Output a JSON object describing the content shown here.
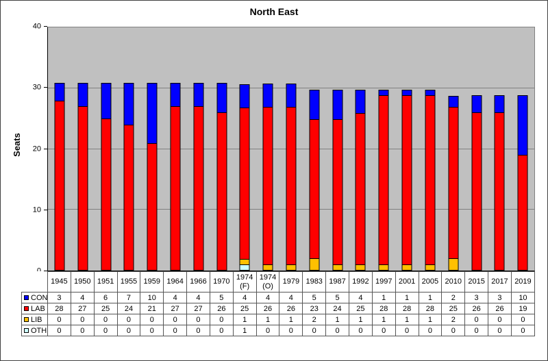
{
  "chart_data": {
    "type": "bar",
    "stacked": true,
    "title": "North East",
    "ylabel": "Seats",
    "xlabel": "",
    "ylim": [
      0,
      40
    ],
    "yticks": [
      0,
      10,
      20,
      30,
      40
    ],
    "gridline_values": [
      10,
      20,
      30
    ],
    "grid": true,
    "legend_position": "table-left",
    "plot_background": "#C0C0C0",
    "grid_color": "#808080",
    "categories": [
      "1945",
      "1950",
      "1951",
      "1955",
      "1959",
      "1964",
      "1966",
      "1970",
      "1974 (F)",
      "1974 (O)",
      "1979",
      "1983",
      "1987",
      "1992",
      "1997",
      "2001",
      "2005",
      "2010",
      "2015",
      "2017",
      "2019"
    ],
    "series": [
      {
        "name": "CON",
        "color": "#0000FF",
        "values": [
          3,
          4,
          6,
          7,
          10,
          4,
          4,
          5,
          4,
          4,
          4,
          5,
          5,
          4,
          1,
          1,
          1,
          2,
          3,
          3,
          10
        ]
      },
      {
        "name": "LAB",
        "color": "#FF0000",
        "values": [
          28,
          27,
          25,
          24,
          21,
          27,
          27,
          26,
          25,
          26,
          26,
          23,
          24,
          25,
          28,
          28,
          28,
          25,
          26,
          26,
          19
        ]
      },
      {
        "name": "LIB",
        "color": "#FFC000",
        "values": [
          0,
          0,
          0,
          0,
          0,
          0,
          0,
          0,
          1,
          1,
          1,
          2,
          1,
          1,
          1,
          1,
          1,
          2,
          0,
          0,
          0
        ]
      },
      {
        "name": "OTH",
        "color": "#CCFFFF",
        "values": [
          0,
          0,
          0,
          0,
          0,
          0,
          0,
          0,
          1,
          0,
          0,
          0,
          0,
          0,
          0,
          0,
          0,
          0,
          0,
          0,
          0
        ]
      }
    ],
    "stack_order_bottom_to_top": [
      "OTH",
      "LIB",
      "LAB",
      "CON"
    ]
  }
}
